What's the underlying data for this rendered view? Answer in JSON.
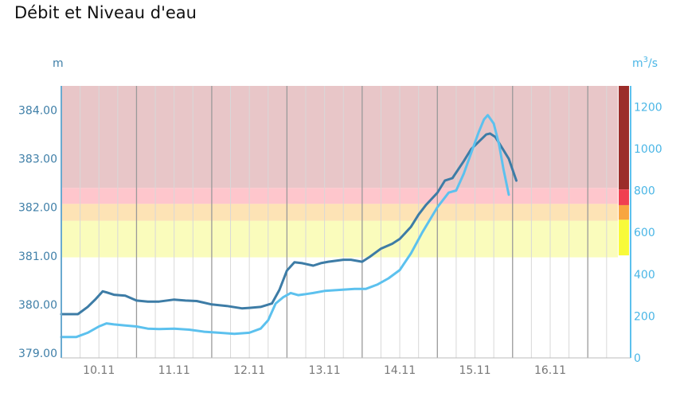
{
  "title": "Débit et Niveau d'eau",
  "chart_data": {
    "type": "line",
    "title": "Débit et Niveau d'eau",
    "y_left": {
      "unit": "m",
      "range": [
        378.9,
        384.5
      ],
      "ticks": [
        "379.00",
        "380.00",
        "381.00",
        "382.00",
        "383.00",
        "384.00"
      ]
    },
    "y_right": {
      "unit_base": "m",
      "unit_sup": "3",
      "unit_tail": "/s",
      "range": [
        0,
        1300
      ],
      "ticks": [
        "0",
        "200",
        "400",
        "600",
        "800",
        "1000",
        "1200"
      ]
    },
    "x_labels": [
      "10.11",
      "11.11",
      "12.11",
      "13.11",
      "14.11",
      "15.11",
      "16.11"
    ],
    "x_range": [
      9.5,
      16.9
    ],
    "zones": [
      {
        "from": 384.5,
        "to": 382.4,
        "color": "#e8c6c8"
      },
      {
        "from": 382.4,
        "to": 382.07,
        "color": "#fec6cc"
      },
      {
        "from": 382.07,
        "to": 381.72,
        "color": "#fde3b5"
      },
      {
        "from": 381.72,
        "to": 380.97,
        "color": "#fafcbc"
      }
    ],
    "right_bar": [
      {
        "from": 1300,
        "to": 805,
        "color": "#9b2d2a"
      },
      {
        "from": 805,
        "to": 730,
        "color": "#f04050"
      },
      {
        "from": 730,
        "to": 660,
        "color": "#f8a640"
      },
      {
        "from": 660,
        "to": 490,
        "color": "#f8fa3a"
      }
    ],
    "series": [
      {
        "name": "",
        "axis": "left",
        "color": "#3d7ca6",
        "x": [
          9.5,
          9.72,
          9.85,
          9.95,
          10.05,
          10.1,
          10.2,
          10.35,
          10.5,
          10.65,
          10.8,
          11.0,
          11.15,
          11.3,
          11.5,
          11.7,
          11.9,
          12.0,
          12.15,
          12.3,
          12.4,
          12.5,
          12.6,
          12.7,
          12.85,
          12.95,
          13.05,
          13.25,
          13.35,
          13.5,
          13.6,
          13.75,
          13.9,
          14.0,
          14.15,
          14.25,
          14.35,
          14.5,
          14.6,
          14.7,
          14.85,
          14.95,
          15.05,
          15.15,
          15.2,
          15.27,
          15.35,
          15.45,
          15.55
        ],
        "y": [
          379.8,
          379.8,
          379.95,
          380.1,
          380.27,
          380.25,
          380.2,
          380.18,
          380.08,
          380.06,
          380.06,
          380.1,
          380.08,
          380.07,
          380.0,
          379.97,
          379.92,
          379.93,
          379.95,
          380.02,
          380.3,
          380.7,
          380.87,
          380.85,
          380.8,
          380.85,
          380.88,
          380.92,
          380.92,
          380.88,
          380.98,
          381.15,
          381.25,
          381.35,
          381.6,
          381.85,
          382.05,
          382.3,
          382.55,
          382.6,
          382.95,
          383.2,
          383.35,
          383.5,
          383.52,
          383.45,
          383.25,
          383.0,
          382.55
        ]
      },
      {
        "name": "",
        "axis": "right",
        "color": "#5cc1ee",
        "x": [
          9.5,
          9.7,
          9.85,
          10.0,
          10.1,
          10.2,
          10.35,
          10.5,
          10.65,
          10.8,
          11.0,
          11.2,
          11.4,
          11.6,
          11.8,
          12.0,
          12.15,
          12.25,
          12.35,
          12.45,
          12.55,
          12.65,
          12.75,
          12.85,
          13.0,
          13.2,
          13.4,
          13.55,
          13.7,
          13.85,
          14.0,
          14.15,
          14.3,
          14.5,
          14.65,
          14.75,
          14.85,
          14.95,
          15.05,
          15.12,
          15.17,
          15.25,
          15.32,
          15.38,
          15.45
        ],
        "y": [
          100,
          100,
          120,
          150,
          165,
          160,
          155,
          150,
          140,
          138,
          140,
          135,
          125,
          120,
          115,
          120,
          140,
          180,
          260,
          290,
          310,
          300,
          305,
          310,
          320,
          325,
          330,
          330,
          350,
          380,
          420,
          500,
          600,
          720,
          790,
          800,
          880,
          980,
          1080,
          1140,
          1160,
          1120,
          1020,
          900,
          780
        ]
      }
    ]
  }
}
